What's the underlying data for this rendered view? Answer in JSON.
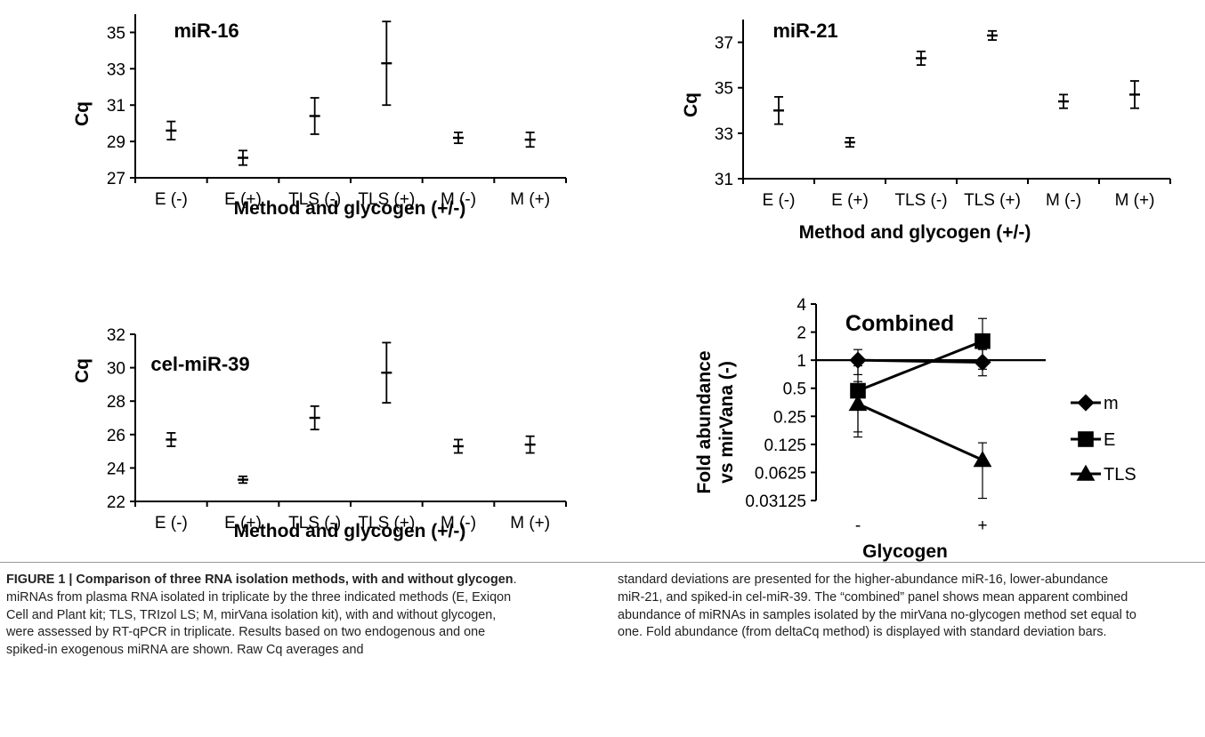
{
  "chart_data": [
    {
      "type": "scatter",
      "title": "miR-16",
      "xlabel": "Method and glycogen (+/-)",
      "ylabel": "Cq",
      "categories": [
        "E (-)",
        "E (+)",
        "TLS (-)",
        "TLS (+)",
        "M (-)",
        "M (+)"
      ],
      "values": [
        29.6,
        28.1,
        30.4,
        33.3,
        29.2,
        29.1
      ],
      "errors": [
        0.5,
        0.4,
        1.0,
        2.3,
        0.3,
        0.4
      ],
      "yticks": [
        "27",
        "29",
        "31",
        "33",
        "35"
      ],
      "ylim": [
        27,
        36
      ]
    },
    {
      "type": "scatter",
      "title": "miR-21",
      "xlabel": "Method and glycogen (+/-)",
      "ylabel": "Cq",
      "categories": [
        "E (-)",
        "E (+)",
        "TLS (-)",
        "TLS (+)",
        "M (-)",
        "M (+)"
      ],
      "values": [
        34.0,
        32.6,
        36.3,
        37.3,
        34.4,
        34.7
      ],
      "errors": [
        0.6,
        0.2,
        0.3,
        0.2,
        0.3,
        0.6
      ],
      "yticks": [
        "31",
        "33",
        "35",
        "37"
      ],
      "ylim": [
        31,
        38
      ]
    },
    {
      "type": "scatter",
      "title": "cel-miR-39",
      "xlabel": "Method and glycogen (+/-)",
      "ylabel": "Cq",
      "categories": [
        "E (-)",
        "E (+)",
        "TLS (-)",
        "TLS (+)",
        "M (-)",
        "M (+)"
      ],
      "values": [
        25.7,
        23.3,
        27.0,
        29.7,
        25.3,
        25.4
      ],
      "errors": [
        0.4,
        0.2,
        0.7,
        1.8,
        0.4,
        0.5
      ],
      "yticks": [
        "22",
        "24",
        "26",
        "28",
        "30",
        "32"
      ],
      "ylim": [
        22,
        32
      ]
    },
    {
      "type": "line",
      "title": "Combined",
      "xlabel": "Glycogen",
      "ylabel": "Fold abundance vs mirVana (-)",
      "yscale": "log2",
      "categories": [
        "-",
        "+"
      ],
      "yticks": [
        "0.03125",
        "0.0625",
        "0.125",
        "0.25",
        "0.5",
        "1",
        "2",
        "4"
      ],
      "ylim": [
        0.03125,
        4
      ],
      "reference_line": 1,
      "legend_position": "right",
      "series": [
        {
          "name": "m",
          "marker": "diamond",
          "values": [
            1.0,
            0.95
          ],
          "errors_up": [
            0.3,
            0.35
          ],
          "errors_down": [
            0.3,
            0.27
          ]
        },
        {
          "name": "E",
          "marker": "square",
          "values": [
            0.47,
            1.6
          ],
          "errors_up": [
            0.4,
            1.2
          ],
          "errors_down": [
            0.3,
            0.8
          ]
        },
        {
          "name": "TLS",
          "marker": "triangle",
          "values": [
            0.34,
            0.085
          ],
          "errors_up": [
            0.25,
            0.045
          ],
          "errors_down": [
            0.19,
            0.052
          ]
        }
      ]
    }
  ],
  "caption": {
    "label": "FIGURE 1 | Comparison of three RNA isolation methods, with and without glycogen",
    "text_left": ". miRNAs from plasma RNA isolated in triplicate by the three indicated methods (E, Exiqon Cell and Plant kit; TLS, TRIzol LS; M, mirVana isolation kit), with and without glycogen, were assessed by RT-qPCR in triplicate. Results based on two endogenous and one spiked-in exogenous miRNA are shown. Raw Cq averages and",
    "text_right": "standard deviations are presented for the higher-abundance miR-16, lower-abundance miR-21, and spiked-in cel-miR-39. The “combined” panel shows mean apparent combined abundance of miRNAs in samples isolated by the mirVana no-glycogen method set equal to one. Fold abundance (from deltaCq method) is displayed with standard deviation bars."
  }
}
